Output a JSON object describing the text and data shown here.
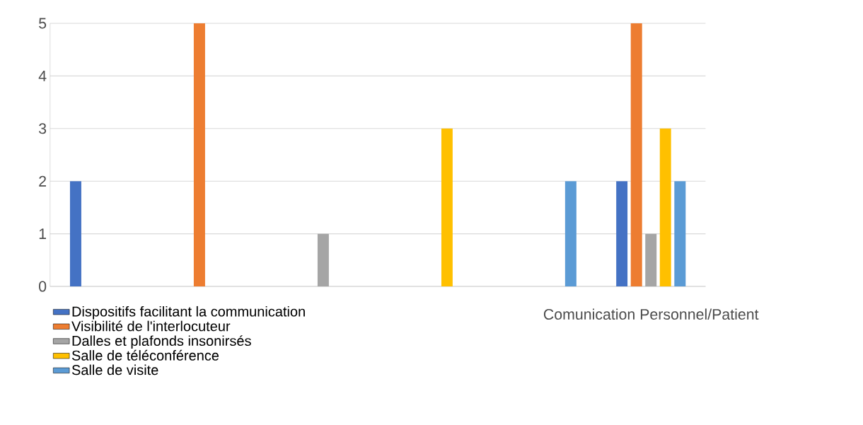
{
  "chart_data": {
    "type": "bar",
    "categories": [
      null,
      null,
      null,
      null,
      null,
      "Comunication Personnel/Patient"
    ],
    "series": [
      {
        "name": "Dispositifs facilitant la communication",
        "color": "#4472c4",
        "values": [
          2,
          null,
          null,
          null,
          null,
          2
        ]
      },
      {
        "name": "Visibilité de l'interlocuteur",
        "color": "#ed7d31",
        "values": [
          null,
          5,
          null,
          null,
          null,
          5
        ]
      },
      {
        "name": "Dalles et plafonds insonirsés",
        "color": "#a5a5a5",
        "values": [
          null,
          null,
          1,
          null,
          null,
          1
        ]
      },
      {
        "name": "Salle de téléconférence",
        "color": "#ffc000",
        "values": [
          null,
          null,
          null,
          3,
          null,
          3
        ]
      },
      {
        "name": "Salle de visite",
        "color": "#5b9bd5",
        "values": [
          null,
          null,
          null,
          null,
          2,
          2
        ]
      }
    ],
    "ylim": [
      0,
      5
    ],
    "yticks": [
      0,
      1,
      2,
      3,
      4,
      5
    ],
    "grid": "y",
    "legend": "bottom left"
  }
}
